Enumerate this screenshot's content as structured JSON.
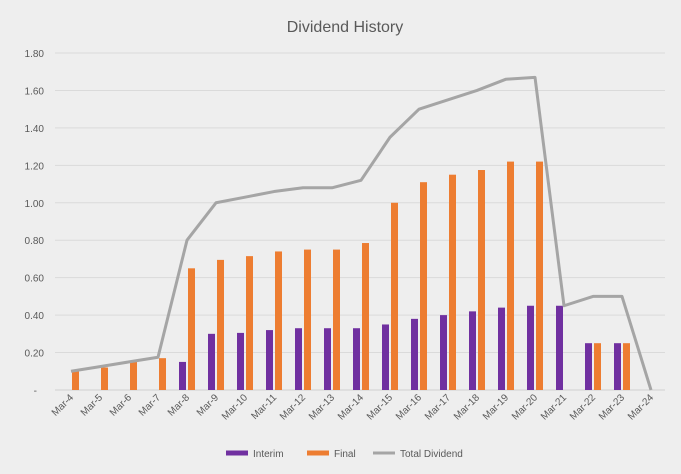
{
  "chart_data": {
    "type": "bar",
    "title": "Dividend History",
    "xlabel": "",
    "ylabel": "",
    "ylim": [
      0,
      1.8
    ],
    "yticks": [
      "-",
      "0.20",
      "0.40",
      "0.60",
      "0.80",
      "1.00",
      "1.20",
      "1.40",
      "1.60",
      "1.80"
    ],
    "ytick_values": [
      0,
      0.2,
      0.4,
      0.6,
      0.8,
      1.0,
      1.2,
      1.4,
      1.6,
      1.8
    ],
    "grid": true,
    "legend_position": "bottom",
    "categories": [
      "Mar-4",
      "Mar-5",
      "Mar-6",
      "Mar-7",
      "Mar-8",
      "Mar-9",
      "Mar-10",
      "Mar-11",
      "Mar-12",
      "Mar-13",
      "Mar-14",
      "Mar-15",
      "Mar-16",
      "Mar-17",
      "Mar-18",
      "Mar-19",
      "Mar-20",
      "Mar-21",
      "Mar-22",
      "Mar-23",
      "Mar-24"
    ],
    "series": [
      {
        "name": "Interim",
        "type": "bar",
        "color": "#7030a0",
        "values": [
          null,
          null,
          null,
          null,
          0.15,
          0.3,
          0.305,
          0.32,
          0.33,
          0.33,
          0.33,
          0.35,
          0.38,
          0.4,
          0.42,
          0.44,
          0.45,
          0.45,
          0.25,
          0.25,
          null
        ]
      },
      {
        "name": "Final",
        "type": "bar",
        "color": "#ed7d31",
        "values": [
          0.1,
          0.12,
          0.15,
          0.17,
          0.65,
          0.695,
          0.715,
          0.74,
          0.75,
          0.75,
          0.785,
          1.0,
          1.11,
          1.15,
          1.175,
          1.22,
          1.22,
          null,
          0.25,
          0.25,
          null
        ]
      },
      {
        "name": "Total Dividend",
        "type": "line",
        "color": "#a5a5a5",
        "values": [
          0.1,
          0.125,
          0.15,
          0.175,
          0.8,
          1.0,
          1.03,
          1.06,
          1.08,
          1.08,
          1.12,
          1.35,
          1.5,
          1.55,
          1.6,
          1.66,
          1.67,
          0.45,
          0.5,
          0.5,
          0
        ]
      }
    ]
  }
}
